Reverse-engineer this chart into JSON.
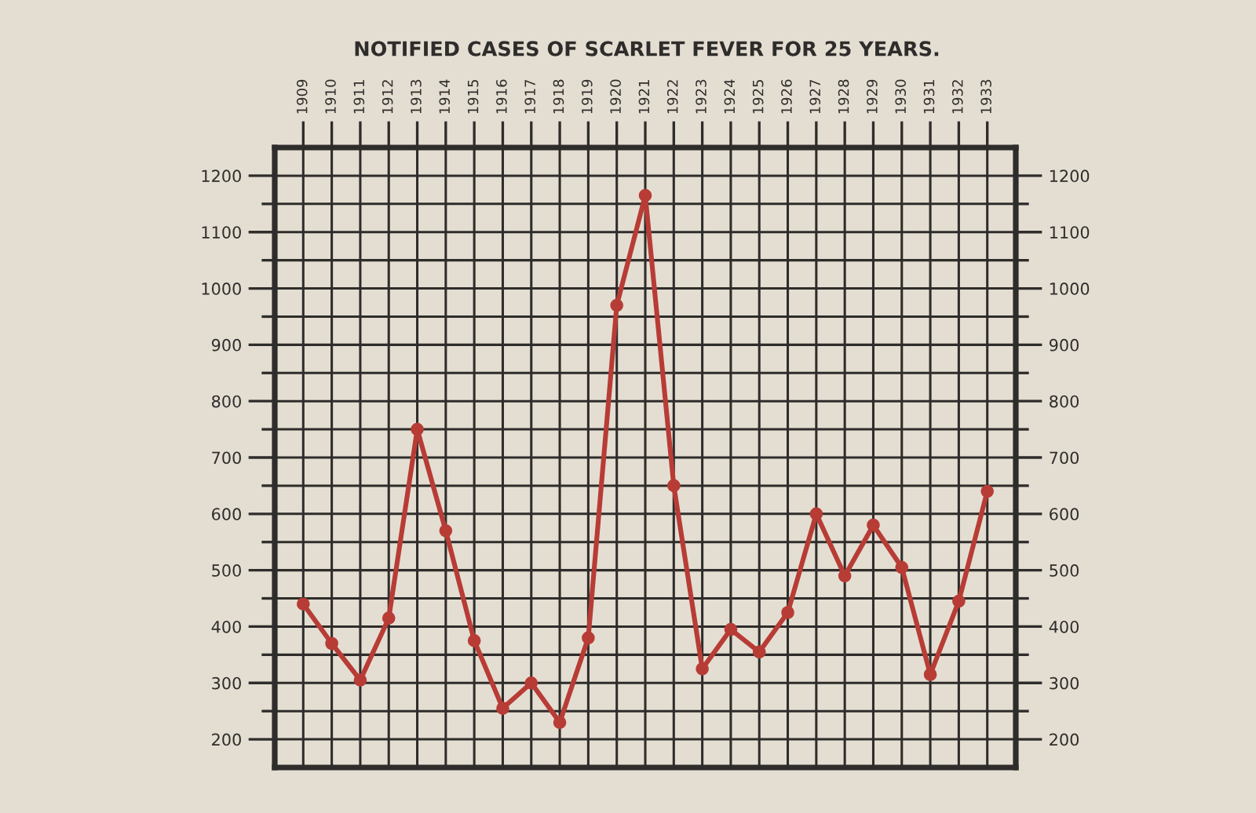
{
  "chart_data": {
    "type": "line",
    "title": "NOTIFIED CASES OF SCARLET FEVER FOR 25 YEARS.",
    "categories": [
      "1909",
      "1910",
      "1911",
      "1912",
      "1913",
      "1914",
      "1915",
      "1916",
      "1917",
      "1918",
      "1919",
      "1920",
      "1921",
      "1922",
      "1923",
      "1924",
      "1925",
      "1926",
      "1927",
      "1928",
      "1929",
      "1930",
      "1931",
      "1932",
      "1933"
    ],
    "series": [
      {
        "color": "#b83c36",
        "values": [
          440,
          370,
          305,
          415,
          750,
          570,
          375,
          255,
          300,
          230,
          380,
          970,
          1165,
          650,
          325,
          395,
          355,
          425,
          600,
          490,
          580,
          505,
          315,
          445,
          640
        ]
      }
    ],
    "marker": "circle",
    "line_style": "solid",
    "ylim": [
      150,
      1250
    ],
    "yticks": [
      200,
      {
        "value": 250,
        "label": null
      },
      300,
      {
        "value": 350,
        "label": null
      },
      400,
      {
        "value": 450,
        "label": null
      },
      500,
      {
        "value": 550,
        "label": null
      },
      600,
      {
        "value": 650,
        "label": null
      },
      700,
      {
        "value": 750,
        "label": null
      },
      800,
      {
        "value": 850,
        "label": null
      },
      900,
      {
        "value": 950,
        "label": null
      },
      1000,
      {
        "value": 1050,
        "label": null
      },
      1100,
      {
        "value": 1150,
        "label": null
      },
      1200
    ],
    "y2lim": [
      150,
      1250
    ],
    "y2ticks": [
      200,
      {
        "value": 250,
        "label": null
      },
      300,
      {
        "value": 350,
        "label": null
      },
      400,
      {
        "value": 450,
        "label": null
      },
      500,
      {
        "value": 550,
        "label": null
      },
      600,
      {
        "value": 650,
        "label": null
      },
      700,
      {
        "value": 750,
        "label": null
      },
      800,
      {
        "value": 850,
        "label": null
      },
      900,
      {
        "value": 950,
        "label": null
      },
      1000,
      {
        "value": 1050,
        "label": null
      },
      1100,
      {
        "value": 1150,
        "label": null
      },
      1200
    ],
    "grid": true
  }
}
